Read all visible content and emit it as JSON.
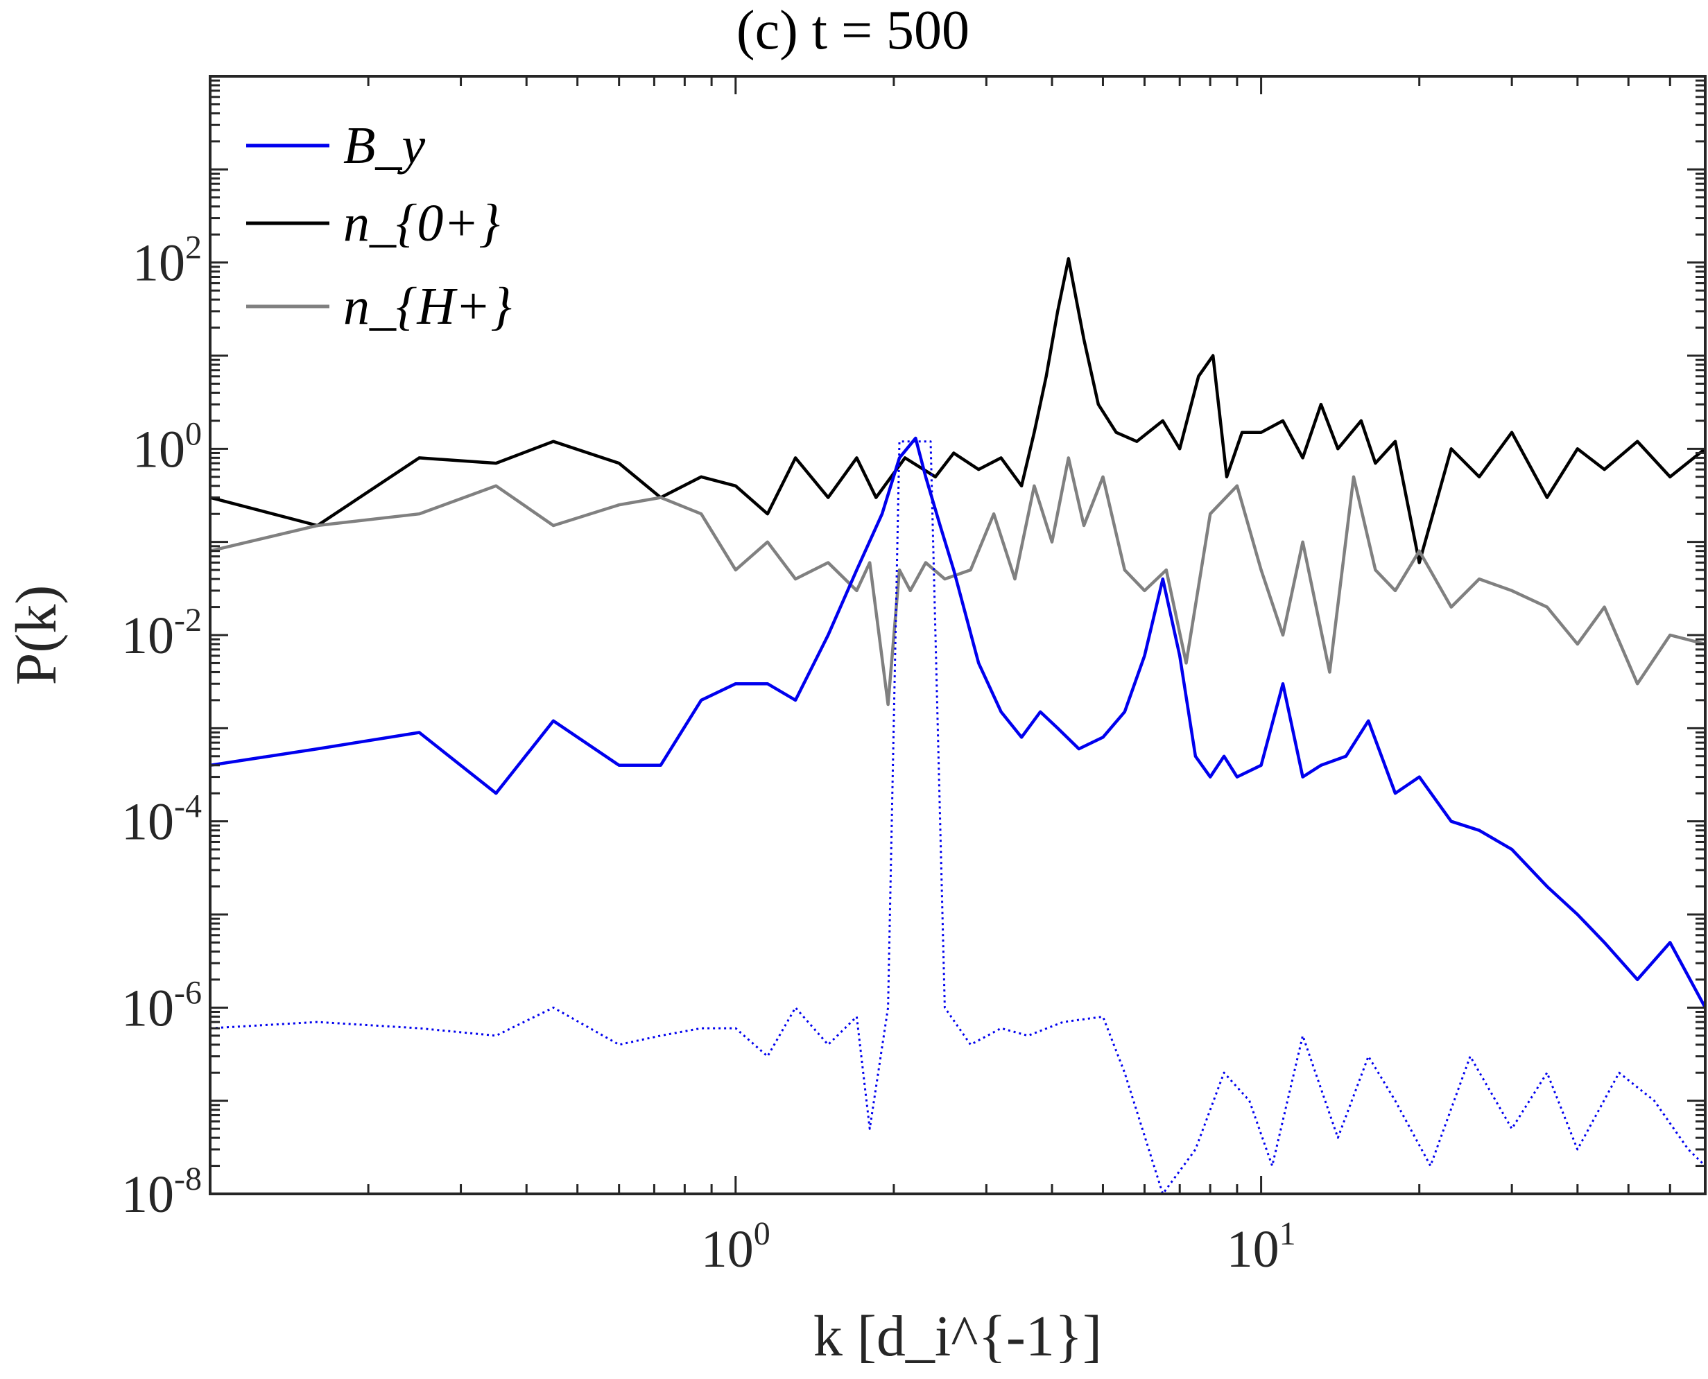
{
  "chart_data": {
    "type": "line",
    "title": "(c)  t = 500",
    "xlabel": "k [d_i^{-1}]",
    "ylabel": "P(k)",
    "xscale": "log",
    "yscale": "log",
    "xlim": [
      0.1,
      70
    ],
    "ylim": [
      1e-08,
      10000.0
    ],
    "grid": false,
    "legend_position": "top-left",
    "x_ticks": [
      {
        "base": "10",
        "exp": "0",
        "value": 1
      },
      {
        "base": "10",
        "exp": "1",
        "value": 10
      }
    ],
    "y_ticks": [
      {
        "base": "10",
        "exp": "-8",
        "value": 1e-08
      },
      {
        "base": "10",
        "exp": "-6",
        "value": 1e-06
      },
      {
        "base": "10",
        "exp": "-4",
        "value": 0.0001
      },
      {
        "base": "10",
        "exp": "-2",
        "value": 0.01
      },
      {
        "base": "10",
        "exp": "0",
        "value": 1
      },
      {
        "base": "10",
        "exp": "2",
        "value": 100
      }
    ],
    "legend": [
      {
        "label": "B_y",
        "color": "#0000ee"
      },
      {
        "label": "n_{0+}",
        "color": "#000000"
      },
      {
        "label": "n_{H+}",
        "color": "#808080"
      }
    ],
    "series": [
      {
        "name": "n_{0+}",
        "color": "#000000",
        "style": "solid",
        "x": [
          0.1,
          0.16,
          0.25,
          0.35,
          0.45,
          0.6,
          0.72,
          0.86,
          1.0,
          1.15,
          1.3,
          1.5,
          1.7,
          1.85,
          2.1,
          2.4,
          2.6,
          2.9,
          3.2,
          3.5,
          3.7,
          3.9,
          4.1,
          4.3,
          4.6,
          4.9,
          5.3,
          5.8,
          6.5,
          7.0,
          7.6,
          8.1,
          8.6,
          9.2,
          10.0,
          11.0,
          12.0,
          13.0,
          14.0,
          15.5,
          16.5,
          18.0,
          20.0,
          23.0,
          26.0,
          30.0,
          35.0,
          40.0,
          45.0,
          52.0,
          60.0,
          70.0
        ],
        "y": [
          0.3,
          0.15,
          0.8,
          0.7,
          1.2,
          0.7,
          0.3,
          0.5,
          0.4,
          0.2,
          0.8,
          0.3,
          0.8,
          0.3,
          0.8,
          0.5,
          0.9,
          0.6,
          0.8,
          0.4,
          1.5,
          6.0,
          30.0,
          110.0,
          15.0,
          3.0,
          1.5,
          1.2,
          2.0,
          1.0,
          6.0,
          10.0,
          0.5,
          1.5,
          1.5,
          2.0,
          0.8,
          3.0,
          1.0,
          2.0,
          0.7,
          1.2,
          0.06,
          1.0,
          0.5,
          1.5,
          0.3,
          1.0,
          0.6,
          1.2,
          0.5,
          1.0
        ]
      },
      {
        "name": "n_{H+}",
        "color": "#808080",
        "style": "solid",
        "x": [
          0.1,
          0.16,
          0.25,
          0.35,
          0.45,
          0.6,
          0.72,
          0.86,
          1.0,
          1.15,
          1.3,
          1.5,
          1.7,
          1.8,
          1.95,
          2.05,
          2.15,
          2.3,
          2.5,
          2.8,
          3.1,
          3.4,
          3.7,
          4.0,
          4.3,
          4.6,
          5.0,
          5.5,
          6.0,
          6.6,
          7.2,
          8.0,
          9.0,
          10.0,
          11.0,
          12.0,
          13.5,
          15.0,
          16.5,
          18.0,
          20.0,
          23.0,
          26.0,
          30.0,
          35.0,
          40.0,
          45.0,
          52.0,
          60.0,
          70.0
        ],
        "y": [
          0.08,
          0.15,
          0.2,
          0.4,
          0.15,
          0.25,
          0.3,
          0.2,
          0.05,
          0.1,
          0.04,
          0.06,
          0.03,
          0.06,
          0.0018,
          0.05,
          0.03,
          0.06,
          0.04,
          0.05,
          0.2,
          0.04,
          0.4,
          0.1,
          0.8,
          0.15,
          0.5,
          0.05,
          0.03,
          0.05,
          0.005,
          0.2,
          0.4,
          0.05,
          0.01,
          0.1,
          0.004,
          0.5,
          0.05,
          0.03,
          0.08,
          0.02,
          0.04,
          0.03,
          0.02,
          0.008,
          0.02,
          0.003,
          0.01,
          0.008
        ]
      },
      {
        "name": "B_y",
        "color": "#0000ee",
        "style": "solid",
        "x": [
          0.1,
          0.16,
          0.25,
          0.35,
          0.45,
          0.6,
          0.72,
          0.86,
          1.0,
          1.15,
          1.3,
          1.5,
          1.7,
          1.9,
          2.05,
          2.2,
          2.3,
          2.45,
          2.6,
          2.9,
          3.2,
          3.5,
          3.8,
          4.1,
          4.5,
          5.0,
          5.5,
          6.0,
          6.5,
          7.0,
          7.5,
          8.0,
          8.5,
          9.0,
          10.0,
          11.0,
          12.0,
          13.0,
          14.5,
          16.0,
          18.0,
          20.0,
          23.0,
          26.0,
          30.0,
          35.0,
          40.0,
          45.0,
          52.0,
          60.0,
          70.0
        ],
        "y": [
          0.0004,
          0.0006,
          0.0009,
          0.0002,
          0.0012,
          0.0004,
          0.0004,
          0.002,
          0.003,
          0.003,
          0.002,
          0.01,
          0.05,
          0.2,
          0.8,
          1.3,
          0.5,
          0.15,
          0.05,
          0.005,
          0.0015,
          0.0008,
          0.0015,
          0.001,
          0.0006,
          0.0008,
          0.0015,
          0.006,
          0.04,
          0.006,
          0.0005,
          0.0003,
          0.0005,
          0.0003,
          0.0004,
          0.003,
          0.0003,
          0.0004,
          0.0005,
          0.0012,
          0.0002,
          0.0003,
          0.0001,
          8e-05,
          5e-05,
          2e-05,
          1e-05,
          5e-06,
          2e-06,
          5e-06,
          1e-06
        ]
      },
      {
        "name": "B_y (t = 0)",
        "color": "#0000ee",
        "style": "dotted",
        "x": [
          0.1,
          0.16,
          0.25,
          0.35,
          0.45,
          0.6,
          0.72,
          0.86,
          1.0,
          1.15,
          1.3,
          1.5,
          1.7,
          1.8,
          1.95,
          2.05,
          2.15,
          2.25,
          2.35,
          2.5,
          2.8,
          3.2,
          3.6,
          4.2,
          5.0,
          5.5,
          6.5,
          7.5,
          8.5,
          9.5,
          10.5,
          12.0,
          14.0,
          16.0,
          18.0,
          21.0,
          25.0,
          30.0,
          35.0,
          40.0,
          48.0,
          56.0,
          65.0,
          70.0
        ],
        "y": [
          6e-07,
          7e-07,
          6e-07,
          5e-07,
          1e-06,
          4e-07,
          5e-07,
          6e-07,
          6e-07,
          3e-07,
          1e-06,
          4e-07,
          8e-07,
          5e-08,
          1e-06,
          1.2,
          1.2,
          1.2,
          1.2,
          1e-06,
          4e-07,
          6e-07,
          5e-07,
          7e-07,
          8e-07,
          2e-07,
          1e-08,
          3e-08,
          2e-07,
          1e-07,
          2e-08,
          5e-07,
          4e-08,
          3e-07,
          1e-07,
          2e-08,
          3e-07,
          5e-08,
          2e-07,
          3e-08,
          2e-07,
          1e-07,
          3e-08,
          2e-08
        ]
      }
    ]
  }
}
